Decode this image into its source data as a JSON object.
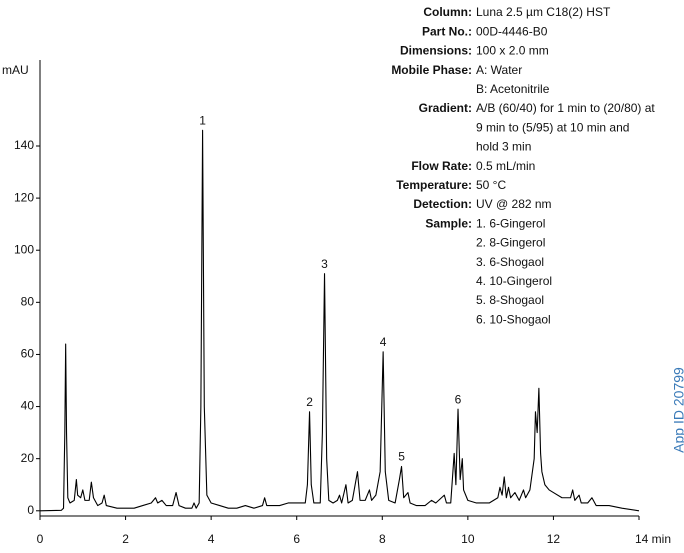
{
  "chart_data": {
    "type": "line",
    "y_label": "mAU",
    "side_note": "App ID 20799",
    "xlim": [
      0,
      14
    ],
    "ylim": [
      -2,
      173
    ],
    "xticks": [
      0,
      2,
      4,
      6,
      8,
      10,
      12,
      {
        "value": 14,
        "label": "14 min"
      }
    ],
    "yticks": [
      0,
      20,
      40,
      60,
      80,
      100,
      120,
      140
    ],
    "color": "#000000",
    "x": [
      0,
      0.5,
      0.55,
      0.58,
      0.6,
      0.62,
      0.65,
      0.7,
      0.8,
      0.85,
      0.88,
      0.95,
      1.0,
      1.05,
      1.15,
      1.2,
      1.25,
      1.35,
      1.45,
      1.5,
      1.55,
      1.8,
      2.2,
      2.4,
      2.6,
      2.7,
      2.75,
      2.85,
      2.95,
      3.1,
      3.18,
      3.25,
      3.4,
      3.55,
      3.6,
      3.65,
      3.72,
      3.76,
      3.8,
      3.84,
      3.9,
      4.0,
      4.2,
      4.4,
      4.6,
      4.8,
      5.0,
      5.2,
      5.25,
      5.3,
      5.6,
      5.8,
      6.0,
      6.2,
      6.25,
      6.3,
      6.34,
      6.4,
      6.55,
      6.6,
      6.65,
      6.7,
      6.75,
      6.85,
      6.95,
      7.0,
      7.05,
      7.15,
      7.2,
      7.3,
      7.42,
      7.48,
      7.6,
      7.7,
      7.75,
      7.85,
      7.95,
      8.02,
      8.07,
      8.15,
      8.3,
      8.4,
      8.45,
      8.5,
      8.6,
      8.65,
      8.8,
      9.0,
      9.15,
      9.25,
      9.45,
      9.5,
      9.6,
      9.68,
      9.72,
      9.77,
      9.82,
      9.87,
      9.9,
      10.0,
      10.2,
      10.5,
      10.7,
      10.75,
      10.8,
      10.85,
      10.9,
      10.95,
      11.0,
      11.1,
      11.2,
      11.3,
      11.35,
      11.45,
      11.55,
      11.58,
      11.62,
      11.66,
      11.7,
      11.73,
      11.8,
      11.9,
      12.0,
      12.2,
      12.4,
      12.45,
      12.5,
      12.6,
      12.65,
      12.8,
      12.9,
      13.0,
      13.3,
      13.6,
      14.0
    ],
    "values": [
      0,
      0.2,
      1,
      30,
      64,
      30,
      5,
      3,
      4,
      12,
      6,
      5,
      8,
      4,
      4,
      11,
      5,
      2,
      3,
      6,
      2,
      1,
      1,
      2,
      3,
      5,
      3,
      4,
      2,
      2,
      7,
      2,
      1,
      1,
      3,
      1,
      3,
      40,
      146,
      40,
      6,
      3,
      2,
      1,
      1,
      2,
      1,
      2,
      5,
      2,
      2,
      3,
      3,
      3,
      10,
      38,
      10,
      3,
      3,
      30,
      91,
      20,
      4,
      3,
      4,
      6,
      3,
      10,
      3,
      4,
      15,
      4,
      4,
      8,
      4,
      6,
      15,
      61,
      15,
      4,
      3,
      12,
      17,
      5,
      7,
      3,
      2,
      2,
      4,
      3,
      6,
      3,
      3,
      22,
      10,
      39,
      12,
      20,
      8,
      4,
      3,
      3,
      5,
      9,
      6,
      13,
      5,
      9,
      5,
      7,
      4,
      8,
      5,
      8,
      20,
      38,
      30,
      47,
      22,
      15,
      10,
      8,
      7,
      5,
      5,
      8,
      4,
      6,
      3,
      3,
      5,
      2,
      2,
      1,
      0
    ],
    "peaks": [
      {
        "label": "1",
        "x": 3.8,
        "y": 146
      },
      {
        "label": "2",
        "x": 6.3,
        "y": 38
      },
      {
        "label": "3",
        "x": 6.65,
        "y": 91
      },
      {
        "label": "4",
        "x": 8.02,
        "y": 61
      },
      {
        "label": "5",
        "x": 8.45,
        "y": 17
      },
      {
        "label": "6",
        "x": 9.77,
        "y": 39
      }
    ],
    "info": [
      {
        "label": "Column:",
        "lines": [
          "Luna 2.5 µm C18(2) HST"
        ]
      },
      {
        "label": "Part No.:",
        "lines": [
          "00D-4446-B0"
        ]
      },
      {
        "label": "Dimensions:",
        "lines": [
          "100 x 2.0 mm"
        ]
      },
      {
        "label": "Mobile Phase:",
        "lines": [
          "A: Water",
          "B: Acetonitrile"
        ]
      },
      {
        "label": "Gradient:",
        "lines": [
          "A/B (60/40) for 1 min to (20/80) at",
          "9 min to (5/95) at 10 min and",
          "hold 3 min"
        ]
      },
      {
        "label": "Flow Rate:",
        "lines": [
          "0.5 mL/min"
        ]
      },
      {
        "label": "Temperature:",
        "lines": [
          "50 °C"
        ]
      },
      {
        "label": "Detection:",
        "lines": [
          "UV @ 282 nm"
        ]
      },
      {
        "label": "Sample:",
        "lines": [
          "1. 6-Gingerol",
          "2. 8-Gingerol",
          "3. 6-Shogaol",
          "4. 10-Gingerol",
          "5. 8-Shogaol",
          "6. 10-Shogaol"
        ]
      }
    ]
  }
}
